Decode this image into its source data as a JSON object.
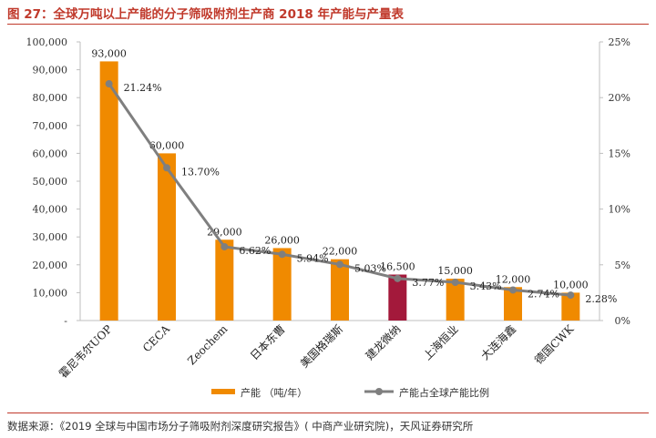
{
  "header": {
    "title": "图 27：全球万吨以上产能的分子筛吸附剂生产商 2018 年产能与产量表"
  },
  "footer": {
    "source": "数据来源：《2019 全球与中国市场分子筛吸附剂深度研究报告》( 中商产业研究院)，天风证券研究所"
  },
  "chart_data": {
    "type": "bar",
    "categories": [
      "霍尼韦尔UOP",
      "CECA",
      "Zeochem",
      "日本东曹",
      "美国格瑞斯",
      "建龙微纳",
      "上海恒业",
      "大连海鑫",
      "德国CWK"
    ],
    "series": [
      {
        "name": "产能 （吨/年）",
        "type": "bar",
        "axis": "left",
        "values": [
          93000,
          60000,
          29000,
          26000,
          22000,
          16500,
          15000,
          12000,
          10000
        ],
        "labels": [
          "93,000",
          "60,000",
          "29,000",
          "26,000",
          "22,000",
          "16,500",
          "15,000",
          "12,000",
          "10,000"
        ],
        "color": "#f08a00",
        "highlight_index": 5,
        "highlight_color": "#a3193b"
      },
      {
        "name": "产能占全球产能比例",
        "type": "line",
        "axis": "right",
        "values": [
          21.24,
          13.7,
          6.62,
          5.94,
          5.03,
          3.77,
          3.43,
          2.74,
          2.28
        ],
        "labels": [
          "21.24%",
          "13.70%",
          "6.62%",
          "5.94%",
          "5.03%",
          "3.77%",
          "3.43%",
          "2.74%",
          "2.28%"
        ],
        "color": "#7f7f7f"
      }
    ],
    "y_left": {
      "ylim": [
        0,
        100000
      ],
      "ticks": [
        "-",
        "10,000",
        "20,000",
        "30,000",
        "40,000",
        "50,000",
        "60,000",
        "70,000",
        "80,000",
        "90,000",
        "100,000"
      ]
    },
    "y_right": {
      "ylim": [
        0,
        25
      ],
      "ticks": [
        "0%",
        "5%",
        "10%",
        "15%",
        "20%",
        "25%"
      ]
    },
    "legend": "bottom",
    "grid": false
  }
}
